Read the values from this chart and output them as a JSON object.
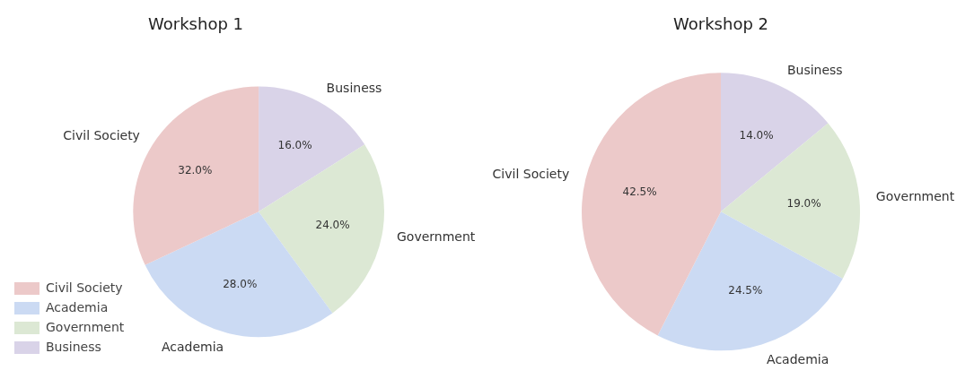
{
  "chart_data": [
    {
      "type": "pie",
      "title": "Workshop 1",
      "categories": [
        "Civil Society",
        "Academia",
        "Government",
        "Business"
      ],
      "values": [
        32,
        28,
        24,
        16
      ],
      "colors": [
        "#ecc9c9",
        "#cbdaf3",
        "#dce8d4",
        "#d9d3e8"
      ],
      "value_labels": [
        "32.0%",
        "28.0%",
        "24.0%",
        "16.0%"
      ],
      "legend": "bottom left"
    },
    {
      "type": "pie",
      "title": "Workshop 2",
      "categories": [
        "Civil Society",
        "Academia",
        "Government",
        "Business"
      ],
      "values": [
        42.5,
        24.5,
        19,
        14
      ],
      "colors": [
        "#ecc9c9",
        "#cbdaf3",
        "#dce8d4",
        "#d9d3e8"
      ],
      "value_labels": [
        "42.5%",
        "24.5%",
        "19.0%",
        "14.0%"
      ]
    }
  ]
}
